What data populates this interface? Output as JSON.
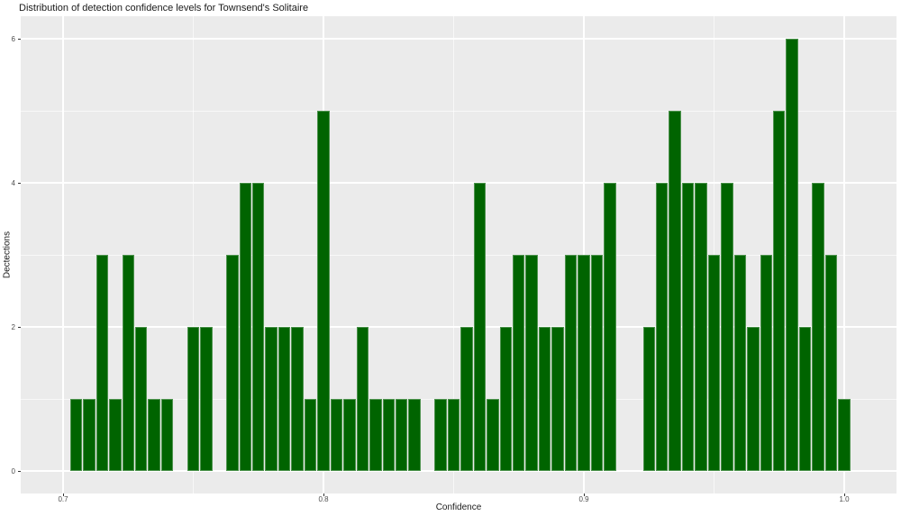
{
  "page": {
    "background": "#ffffff"
  },
  "chart_data": {
    "type": "bar",
    "chart_kind": "histogram",
    "title": "Distribution of detection confidence levels for Townsend's Solitaire",
    "xlabel": "Confidence",
    "ylabel": "Dectections",
    "legend": "none",
    "grid": "on",
    "panel_bg": "#ebebeb",
    "grid_color": "#ffffff",
    "bar_fill": "#006400",
    "bar_edge": "#4e934e",
    "title_color": "#1a1a1a",
    "axis_title_color": "#1a1a1a",
    "tick_label_color": "#4d4d4d",
    "tick_mark_color": "#333333",
    "xlim": [
      0.683737,
      1.020069
    ],
    "ylim": [
      -0.3125,
      6.3125
    ],
    "bin_width": 0.005,
    "x_ticks": [
      {
        "value": 0.7,
        "label": "0.7"
      },
      {
        "value": 0.8,
        "label": "0.8"
      },
      {
        "value": 0.9,
        "label": "0.9"
      },
      {
        "value": 1.0,
        "label": "1.0"
      }
    ],
    "x_minor_ticks": [
      0.75,
      0.85,
      0.95
    ],
    "y_ticks": [
      {
        "value": 0,
        "label": "0"
      },
      {
        "value": 2,
        "label": "2"
      },
      {
        "value": 4,
        "label": "4"
      },
      {
        "value": 6,
        "label": "6"
      }
    ],
    "y_minor_ticks": [
      1,
      3,
      5
    ],
    "bins": {
      "centers": [
        0.705,
        0.71,
        0.715,
        0.72,
        0.725,
        0.73,
        0.735,
        0.74,
        0.745,
        0.75,
        0.755,
        0.76,
        0.765,
        0.77,
        0.775,
        0.78,
        0.785,
        0.79,
        0.795,
        0.8,
        0.805,
        0.81,
        0.815,
        0.82,
        0.825,
        0.83,
        0.835,
        0.84,
        0.845,
        0.85,
        0.855,
        0.86,
        0.865,
        0.87,
        0.875,
        0.88,
        0.885,
        0.89,
        0.895,
        0.9,
        0.905,
        0.91,
        0.915,
        0.92,
        0.925,
        0.93,
        0.935,
        0.94,
        0.945,
        0.95,
        0.955,
        0.96,
        0.965,
        0.97,
        0.975,
        0.98,
        0.985,
        0.99,
        0.995,
        1.0
      ],
      "counts": [
        1,
        1,
        3,
        1,
        3,
        2,
        1,
        1,
        0,
        2,
        2,
        0,
        3,
        4,
        4,
        2,
        2,
        2,
        1,
        5,
        1,
        1,
        2,
        1,
        1,
        1,
        1,
        0,
        1,
        1,
        2,
        4,
        1,
        2,
        3,
        3,
        2,
        2,
        3,
        3,
        3,
        4,
        0,
        0,
        2,
        4,
        5,
        4,
        4,
        3,
        4,
        3,
        2,
        3,
        5,
        6,
        2,
        4,
        3,
        1
      ]
    }
  }
}
